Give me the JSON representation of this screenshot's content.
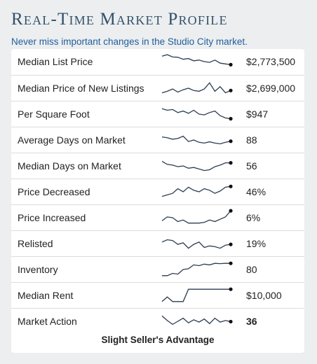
{
  "widget": {
    "title": "Real-Time Market Profile",
    "subtitle": "Never miss important changes in the Studio City market.",
    "footer": "Slight Seller's Advantage"
  },
  "colors": {
    "title": "#33506b",
    "subtitle": "#1f5e9e",
    "sparkline": "#2b3d52"
  },
  "rows": [
    {
      "label": "Median List Price",
      "value": "$2,773,500",
      "bold": false,
      "trend": [
        0.85,
        0.95,
        0.8,
        0.78,
        0.65,
        0.7,
        0.55,
        0.6,
        0.5,
        0.45,
        0.6,
        0.4,
        0.35,
        0.3
      ]
    },
    {
      "label": "Median Price of New Listings",
      "value": "$2,699,000",
      "bold": false,
      "trend": [
        0.2,
        0.3,
        0.45,
        0.25,
        0.4,
        0.5,
        0.35,
        0.3,
        0.45,
        0.85,
        0.3,
        0.6,
        0.2,
        0.35
      ]
    },
    {
      "label": "Per Square Foot",
      "value": "$947",
      "bold": false,
      "trend": [
        0.85,
        0.75,
        0.8,
        0.6,
        0.7,
        0.55,
        0.75,
        0.5,
        0.45,
        0.6,
        0.7,
        0.4,
        0.25,
        0.2
      ]
    },
    {
      "label": "Average Days on Market",
      "value": "88",
      "bold": false,
      "trend": [
        0.7,
        0.65,
        0.55,
        0.6,
        0.75,
        0.4,
        0.5,
        0.35,
        0.3,
        0.38,
        0.3,
        0.25,
        0.35,
        0.42
      ]
    },
    {
      "label": "Median Days on Market",
      "value": "56",
      "bold": false,
      "trend": [
        0.8,
        0.6,
        0.55,
        0.45,
        0.5,
        0.35,
        0.4,
        0.3,
        0.2,
        0.25,
        0.45,
        0.55,
        0.7,
        0.7
      ]
    },
    {
      "label": "Price Decreased",
      "value": "46%",
      "bold": false,
      "trend": [
        0.2,
        0.3,
        0.4,
        0.7,
        0.5,
        0.8,
        0.6,
        0.5,
        0.7,
        0.6,
        0.4,
        0.55,
        0.8,
        0.85
      ]
    },
    {
      "label": "Price Increased",
      "value": "6%",
      "bold": false,
      "trend": [
        0.3,
        0.55,
        0.5,
        0.25,
        0.35,
        0.15,
        0.15,
        0.15,
        0.2,
        0.35,
        0.25,
        0.4,
        0.55,
        0.95
      ]
    },
    {
      "label": "Relisted",
      "value": "19%",
      "bold": false,
      "trend": [
        0.6,
        0.75,
        0.7,
        0.45,
        0.55,
        0.2,
        0.45,
        0.6,
        0.25,
        0.35,
        0.3,
        0.2,
        0.4,
        0.45
      ]
    },
    {
      "label": "Inventory",
      "value": "80",
      "bold": false,
      "trend": [
        0.1,
        0.1,
        0.25,
        0.2,
        0.5,
        0.55,
        0.8,
        0.75,
        0.85,
        0.8,
        0.9,
        0.88,
        0.9,
        0.9
      ]
    },
    {
      "label": "Median Rent",
      "value": "$10,000",
      "bold": false,
      "trend": [
        0.1,
        0.4,
        0.1,
        0.1,
        0.1,
        0.9,
        0.9,
        0.9,
        0.9,
        0.9,
        0.9,
        0.9,
        0.9,
        0.9
      ]
    },
    {
      "label": "Market Action",
      "value": "36",
      "bold": true,
      "trend": [
        0.85,
        0.55,
        0.3,
        0.5,
        0.7,
        0.4,
        0.6,
        0.45,
        0.65,
        0.35,
        0.7,
        0.45,
        0.55,
        0.48
      ]
    }
  ]
}
